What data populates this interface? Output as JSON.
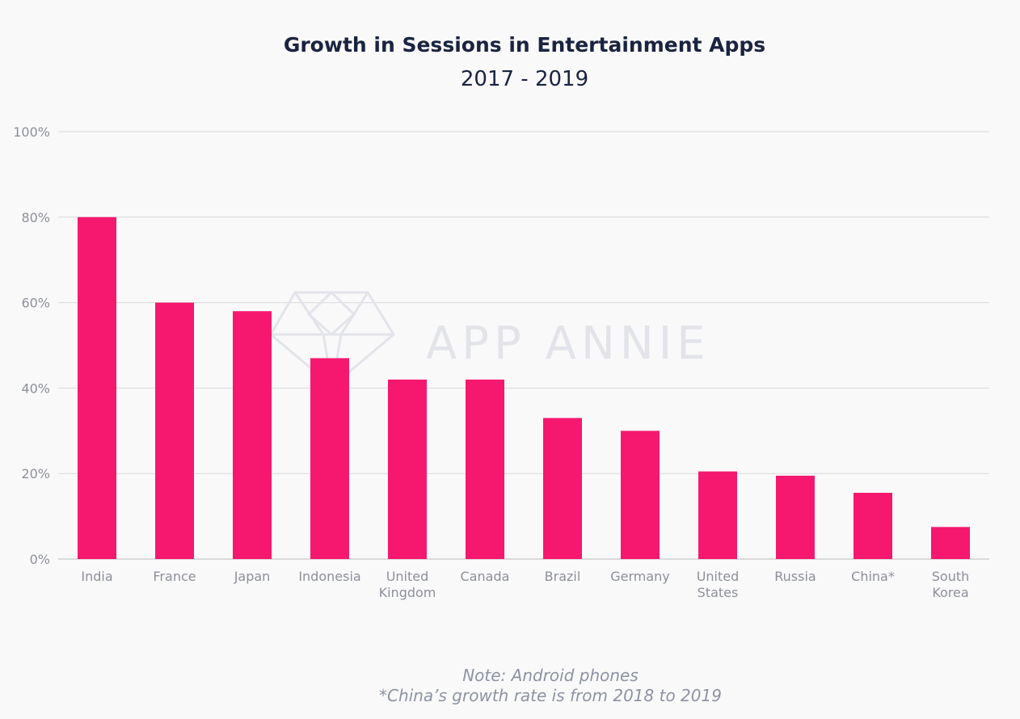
{
  "colors": {
    "bar": "#f5186e",
    "background": "#f9f9f9",
    "title": "#1a2440",
    "tick": "#8d9099"
  },
  "watermark": {
    "text": "APP ANNIE",
    "icon": "diamond-logo-icon"
  },
  "notes": [
    "Note: Android phones",
    "*China’s growth rate is from 2018 to 2019"
  ],
  "chart_data": {
    "type": "bar",
    "title": "Growth in Sessions in Entertainment Apps",
    "subtitle": "2017 - 2019",
    "xlabel": "",
    "ylabel": "",
    "ylim": [
      0,
      100
    ],
    "yticks": [
      0,
      20,
      40,
      60,
      80,
      100
    ],
    "ytick_suffix": "%",
    "grid": true,
    "legend": "none",
    "categories": [
      [
        "India"
      ],
      [
        "France"
      ],
      [
        "Japan"
      ],
      [
        "Indonesia"
      ],
      [
        "United",
        "Kingdom"
      ],
      [
        "Canada"
      ],
      [
        "Brazil"
      ],
      [
        "Germany"
      ],
      [
        "United",
        "States"
      ],
      [
        "Russia"
      ],
      [
        "China*"
      ],
      [
        "South",
        "Korea"
      ]
    ],
    "values": [
      80,
      60,
      58,
      47,
      42,
      42,
      33,
      30,
      20.5,
      19.5,
      15.5,
      7.5
    ]
  }
}
